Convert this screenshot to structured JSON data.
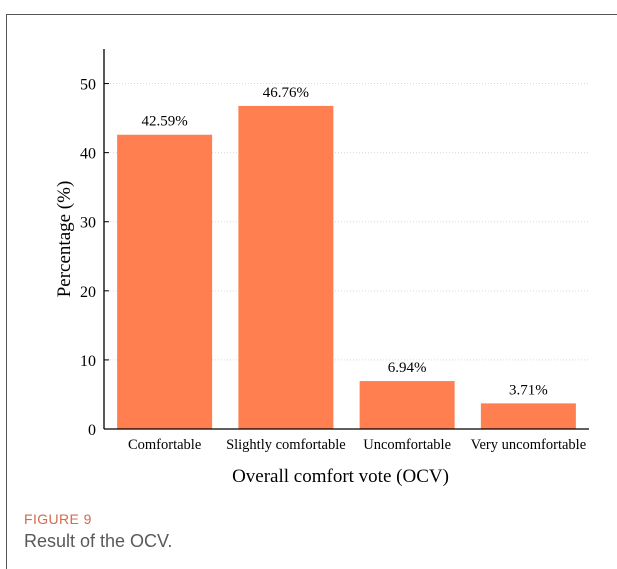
{
  "figure": {
    "label": "FIGURE 9",
    "caption": "Result of the OCV."
  },
  "colors": {
    "bar": "#ff7f50",
    "axis": "#000000",
    "grid": "#d9d9d9",
    "caption_label": "#d36b4c",
    "caption_text": "#595959"
  },
  "chart_data": {
    "type": "bar",
    "title": "",
    "xlabel": "Overall comfort vote (OCV)",
    "ylabel": "Percentage (%)",
    "categories": [
      "Comfortable",
      "Slightly comfortable",
      "Uncomfortable",
      "Very uncomfortable"
    ],
    "values": [
      42.59,
      46.76,
      6.94,
      3.71
    ],
    "data_labels": [
      "42.59%",
      "46.76%",
      "6.94%",
      "3.71%"
    ],
    "ylim": [
      0,
      55
    ],
    "yticks": [
      0,
      10,
      20,
      30,
      40,
      50
    ],
    "grid": "horizontal dotted",
    "legend": "none"
  }
}
